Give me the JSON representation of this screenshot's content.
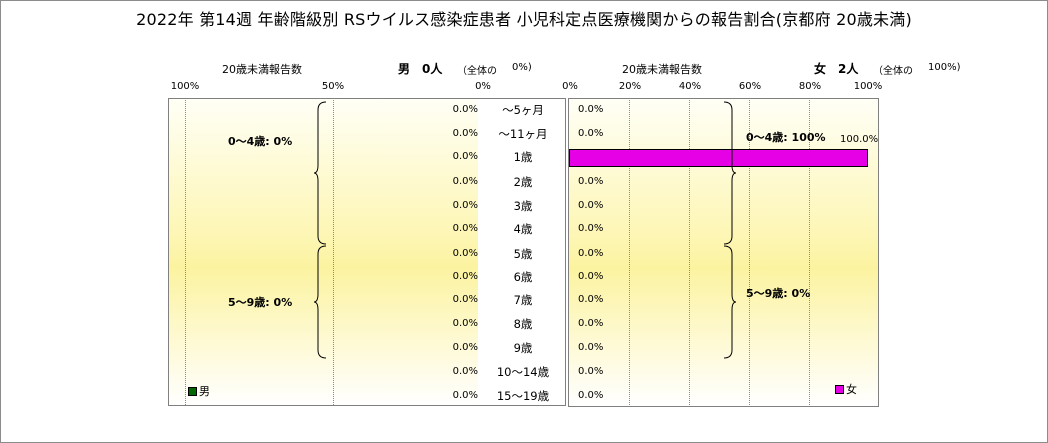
{
  "title": "2022年 第14週 年齢階級別 RSウイルス感染症患者 小児科定点医療機関からの報告割合(京都府 20歳未満)",
  "male": {
    "section_label": "20歳未満報告数",
    "name": "男",
    "count_label": "0人",
    "share_label": "（全体の",
    "share_value": "0%)",
    "axis_ticks": [
      "100%",
      "50%",
      "0%"
    ],
    "groups": [
      {
        "label": "0～4歳: 0%"
      },
      {
        "label": "5～9歳: 0%"
      }
    ],
    "legend": "男",
    "color": "#006600"
  },
  "female": {
    "section_label": "20歳未満報告数",
    "name": "女",
    "count_label": "2人",
    "share_label": "（全体の",
    "share_value": "100%)",
    "axis_ticks": [
      "0%",
      "20%",
      "40%",
      "60%",
      "80%",
      "100%"
    ],
    "groups": [
      {
        "label": "0～4歳: 100%"
      },
      {
        "label": "5～9歳: 0%"
      }
    ],
    "legend": "女",
    "color": "#e600e6"
  },
  "chart_data": {
    "type": "bar",
    "orientation": "horizontal-butterfly",
    "categories": [
      "～5ヶ月",
      "～11ヶ月",
      "1歳",
      "2歳",
      "3歳",
      "4歳",
      "5歳",
      "6歳",
      "7歳",
      "8歳",
      "9歳",
      "10～14歳",
      "15～19歳"
    ],
    "series": [
      {
        "name": "男",
        "values": [
          0,
          0,
          0,
          0,
          0,
          0,
          0,
          0,
          0,
          0,
          0,
          0,
          0
        ],
        "labels": [
          "0.0%",
          "0.0%",
          "0.0%",
          "0.0%",
          "0.0%",
          "0.0%",
          "0.0%",
          "0.0%",
          "0.0%",
          "0.0%",
          "0.0%",
          "0.0%",
          "0.0%"
        ]
      },
      {
        "name": "女",
        "values": [
          0,
          0,
          100,
          0,
          0,
          0,
          0,
          0,
          0,
          0,
          0,
          0,
          0
        ],
        "labels": [
          "0.0%",
          "0.0%",
          "100.0%",
          "0.0%",
          "0.0%",
          "0.0%",
          "0.0%",
          "0.0%",
          "0.0%",
          "0.0%",
          "0.0%",
          "0.0%",
          "0.0%"
        ]
      }
    ],
    "xlim_male": [
      100,
      0
    ],
    "xlim_female": [
      0,
      100
    ],
    "unit": "%",
    "grid": true
  }
}
